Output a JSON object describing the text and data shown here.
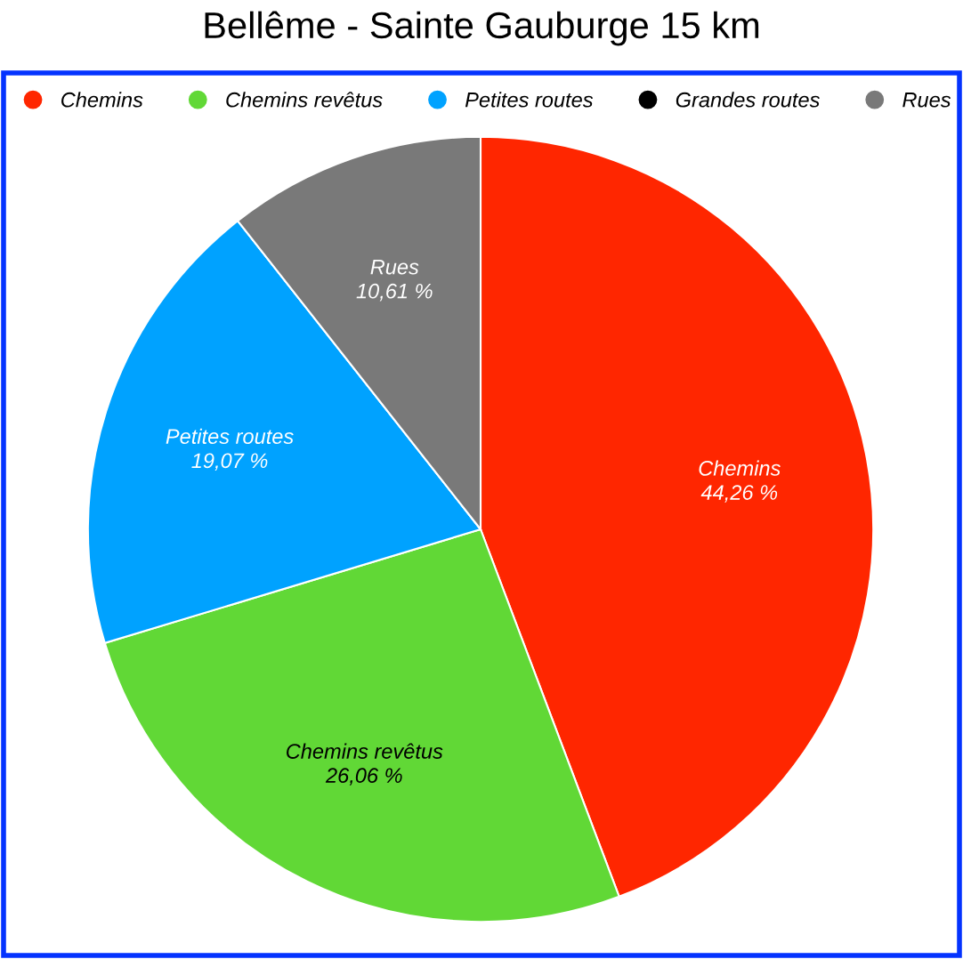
{
  "chart_data": {
    "type": "pie",
    "title": "Bellême - Sainte Gauburge 15 km",
    "categories": [
      "Chemins",
      "Chemins revêtus",
      "Petites routes",
      "Grandes routes",
      "Rues"
    ],
    "values": [
      44.26,
      26.06,
      19.07,
      0,
      10.61
    ],
    "colors": [
      "#ff2600",
      "#61d836",
      "#00a2ff",
      "#000000",
      "#797979"
    ],
    "value_labels": [
      "44,26 %",
      "26,06 %",
      "19,07 %",
      null,
      "10,61 %"
    ],
    "legend": "top"
  }
}
